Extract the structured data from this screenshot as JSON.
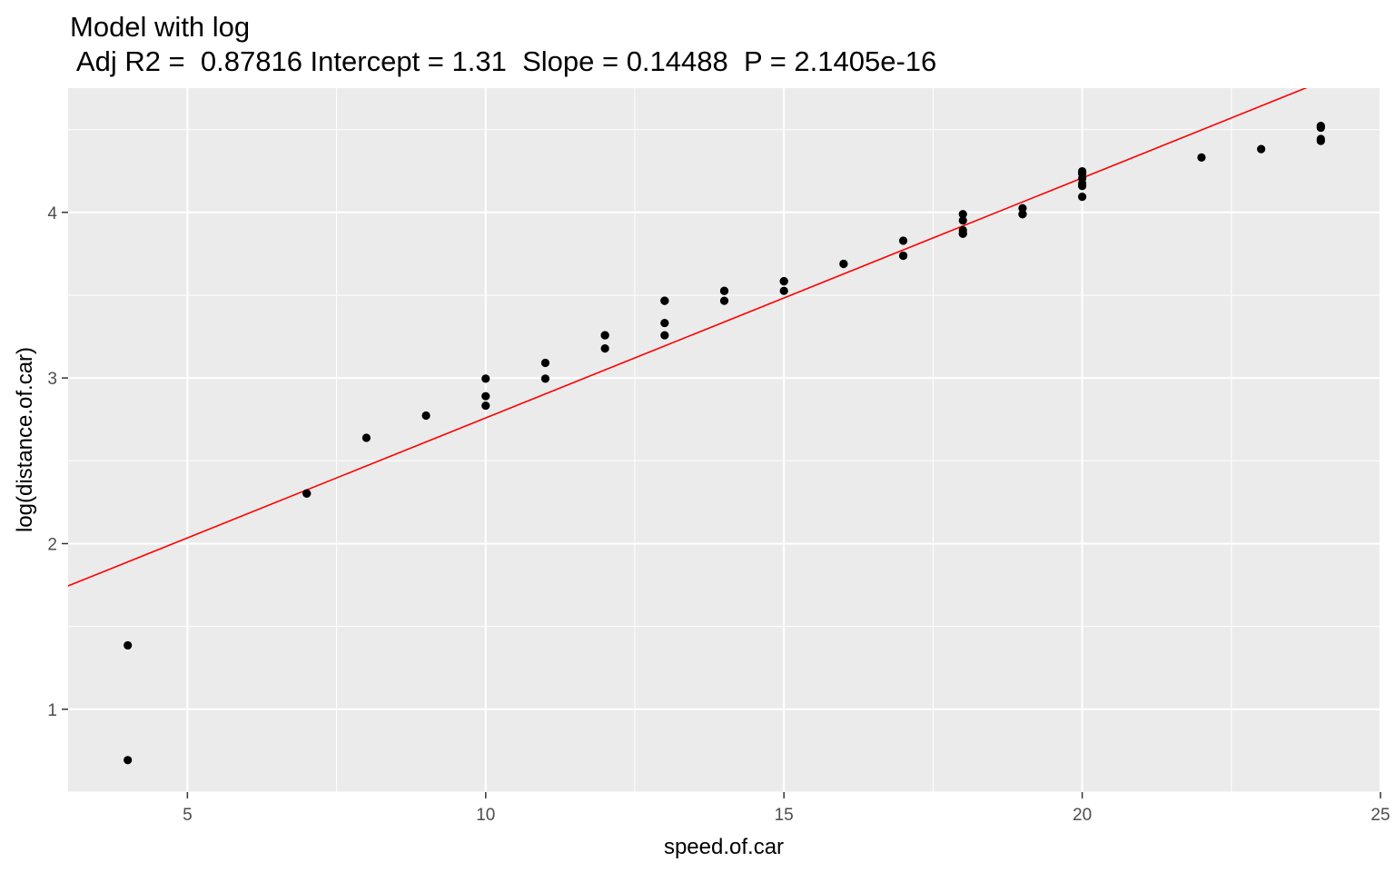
{
  "chart_data": {
    "type": "scatter",
    "title": "Model with log",
    "subtitle": " Adj R2 =  0.87816 Intercept = 1.31  Slope = 0.14488  P = 2.1405e-16",
    "xlabel": "speed.of.car",
    "ylabel": "log(distance.of.car)",
    "xlim": [
      3,
      25
    ],
    "ylim": [
      0.5,
      4.75
    ],
    "x_ticks": [
      5,
      10,
      15,
      20,
      25
    ],
    "y_ticks": [
      1,
      2,
      3,
      4
    ],
    "grid": true,
    "legend": "none",
    "colors": {
      "panel": "#ebebeb",
      "grid": "#ffffff",
      "points": "#000000",
      "fit_line": "#ff0000",
      "tick_label": "#4d4d4d",
      "tick_mark": "#333333"
    },
    "fit_line": {
      "intercept": 1.31,
      "slope": 0.14488
    },
    "points": [
      {
        "x": 4,
        "y": 0.693
      },
      {
        "x": 4,
        "y": 1.386
      },
      {
        "x": 7,
        "y": 2.303
      },
      {
        "x": 7,
        "y": 2.303
      },
      {
        "x": 8,
        "y": 2.639
      },
      {
        "x": 9,
        "y": 2.773
      },
      {
        "x": 10,
        "y": 2.833
      },
      {
        "x": 10,
        "y": 2.89
      },
      {
        "x": 10,
        "y": 2.996
      },
      {
        "x": 11,
        "y": 2.996
      },
      {
        "x": 11,
        "y": 3.091
      },
      {
        "x": 12,
        "y": 3.178
      },
      {
        "x": 12,
        "y": 3.258
      },
      {
        "x": 12,
        "y": 3.258
      },
      {
        "x": 13,
        "y": 3.258
      },
      {
        "x": 13,
        "y": 3.332
      },
      {
        "x": 13,
        "y": 3.466
      },
      {
        "x": 13,
        "y": 3.466
      },
      {
        "x": 14,
        "y": 3.466
      },
      {
        "x": 14,
        "y": 3.526
      },
      {
        "x": 14,
        "y": 3.526
      },
      {
        "x": 15,
        "y": 3.526
      },
      {
        "x": 15,
        "y": 3.584
      },
      {
        "x": 15,
        "y": 3.584
      },
      {
        "x": 16,
        "y": 3.689
      },
      {
        "x": 16,
        "y": 3.689
      },
      {
        "x": 17,
        "y": 3.738
      },
      {
        "x": 17,
        "y": 3.738
      },
      {
        "x": 17,
        "y": 3.829
      },
      {
        "x": 18,
        "y": 3.871
      },
      {
        "x": 18,
        "y": 3.871
      },
      {
        "x": 18,
        "y": 3.892
      },
      {
        "x": 18,
        "y": 3.951
      },
      {
        "x": 18,
        "y": 3.989
      },
      {
        "x": 19,
        "y": 3.989
      },
      {
        "x": 19,
        "y": 3.989
      },
      {
        "x": 19,
        "y": 4.025
      },
      {
        "x": 20,
        "y": 4.094
      },
      {
        "x": 20,
        "y": 4.159
      },
      {
        "x": 20,
        "y": 4.174
      },
      {
        "x": 20,
        "y": 4.205
      },
      {
        "x": 20,
        "y": 4.234
      },
      {
        "x": 20,
        "y": 4.248
      },
      {
        "x": 22,
        "y": 4.331
      },
      {
        "x": 23,
        "y": 4.382
      },
      {
        "x": 24,
        "y": 4.431
      },
      {
        "x": 24,
        "y": 4.443
      },
      {
        "x": 24,
        "y": 4.511
      },
      {
        "x": 24,
        "y": 4.522
      }
    ]
  }
}
